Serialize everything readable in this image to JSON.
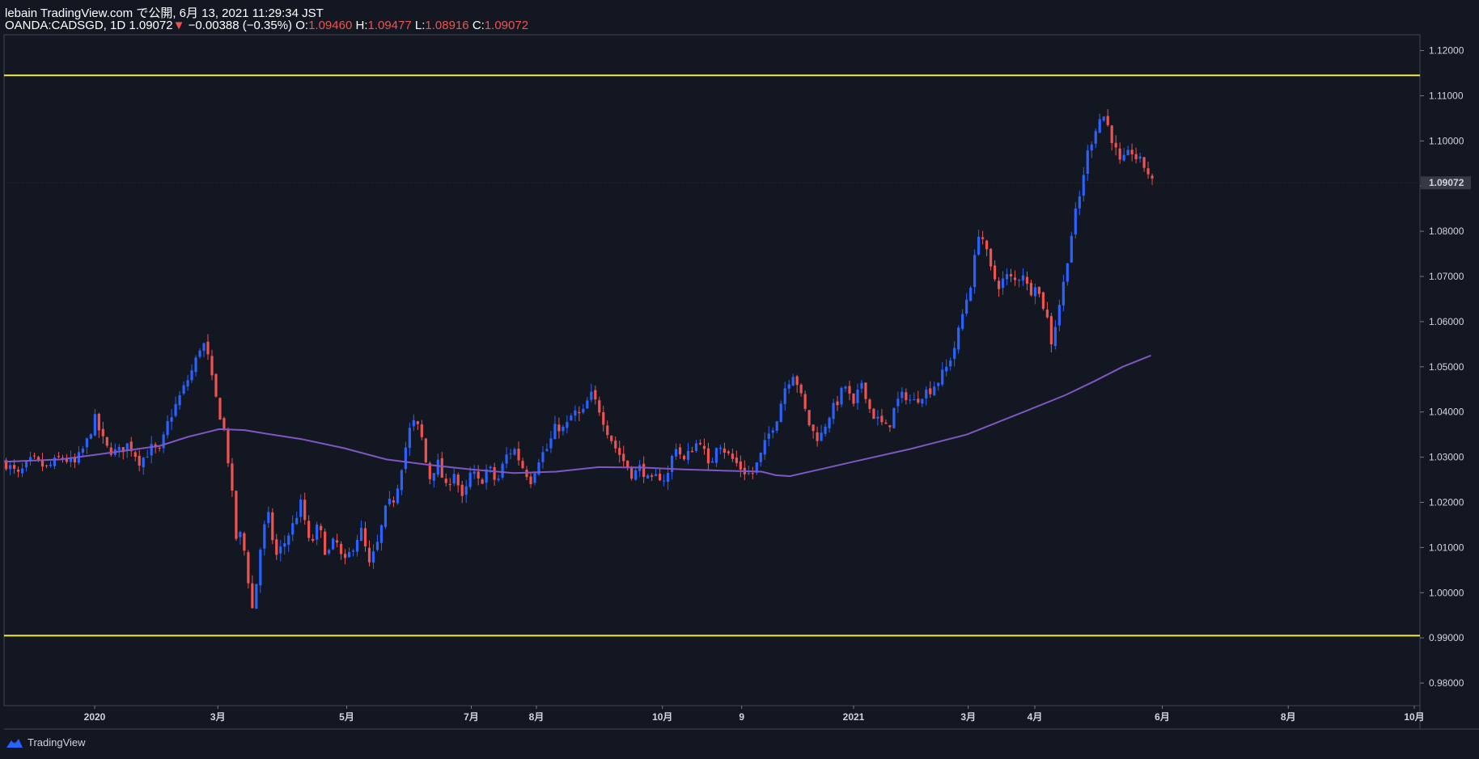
{
  "header": {
    "line1": "lebain TradingView.com で公開, 6月 13, 2021 11:29:34 JST",
    "symbol_label": "OANDA:CADSGD, 1D 1.09072",
    "down_arrow": "▼",
    "change": "−0.00388 (−0.35%)",
    "o_label": "O:",
    "o_value": "1.09460",
    "h_label": "H:",
    "h_value": "1.09477",
    "l_label": "L:",
    "l_value": "1.08916",
    "c_label": "C:",
    "c_value": "1.09072"
  },
  "footer": {
    "brand": "TradingView"
  },
  "colors": {
    "background": "#131722",
    "up": "#2962ff",
    "down": "#ef5350",
    "ma": "#7e57c2",
    "level": "#f5e94a"
  },
  "chart_data": {
    "type": "candlestick",
    "symbol": "OANDA:CADSGD",
    "interval": "1D",
    "ylim": [
      0.975,
      1.1235
    ],
    "y_ticks": [
      "1.12000",
      "1.11000",
      "1.10000",
      "1.09000",
      "1.08000",
      "1.07000",
      "1.06000",
      "1.05000",
      "1.04000",
      "1.03000",
      "1.02000",
      "1.01000",
      "1.00000",
      "0.99000",
      "0.98000"
    ],
    "last_price_label": "1.09072",
    "last_price": 1.09072,
    "x_ticks": [
      {
        "label": "2020",
        "t": 0.064
      },
      {
        "label": "3月",
        "t": 0.151
      },
      {
        "label": "5月",
        "t": 0.242
      },
      {
        "label": "7月",
        "t": 0.33
      },
      {
        "label": "8月",
        "t": 0.376
      },
      {
        "label": "10月",
        "t": 0.465
      },
      {
        "label": "9",
        "t": 0.521
      },
      {
        "label": "2021",
        "t": 0.6
      },
      {
        "label": "3月",
        "t": 0.681
      },
      {
        "label": "4月",
        "t": 0.728
      },
      {
        "label": "6月",
        "t": 0.818
      },
      {
        "label": "8月",
        "t": 0.907
      },
      {
        "label": "10月",
        "t": 0.996
      }
    ],
    "horizontal_levels": [
      1.1145,
      0.9905
    ],
    "close_path": [
      [
        0.0,
        1.029
      ],
      [
        0.01,
        1.026
      ],
      [
        0.02,
        1.0295
      ],
      [
        0.03,
        1.0275
      ],
      [
        0.04,
        1.03
      ],
      [
        0.05,
        1.0285
      ],
      [
        0.058,
        1.033
      ],
      [
        0.064,
        1.0385
      ],
      [
        0.072,
        1.032
      ],
      [
        0.08,
        1.031
      ],
      [
        0.088,
        1.033
      ],
      [
        0.096,
        1.029
      ],
      [
        0.104,
        1.032
      ],
      [
        0.11,
        1.031
      ],
      [
        0.116,
        1.038
      ],
      [
        0.122,
        1.042
      ],
      [
        0.128,
        1.046
      ],
      [
        0.134,
        1.05
      ],
      [
        0.14,
        1.056
      ],
      [
        0.144,
        1.052
      ],
      [
        0.148,
        1.045
      ],
      [
        0.152,
        1.04
      ],
      [
        0.156,
        1.035
      ],
      [
        0.16,
        1.025
      ],
      [
        0.164,
        1.012
      ],
      [
        0.168,
        1.013
      ],
      [
        0.172,
        1.004
      ],
      [
        0.176,
        0.995
      ],
      [
        0.18,
        1.008
      ],
      [
        0.186,
        1.018
      ],
      [
        0.192,
        1.008
      ],
      [
        0.198,
        1.011
      ],
      [
        0.204,
        1.015
      ],
      [
        0.21,
        1.02
      ],
      [
        0.216,
        1.01
      ],
      [
        0.222,
        1.015
      ],
      [
        0.228,
        1.008
      ],
      [
        0.234,
        1.012
      ],
      [
        0.24,
        1.006
      ],
      [
        0.246,
        1.01
      ],
      [
        0.252,
        1.014
      ],
      [
        0.258,
        1.006
      ],
      [
        0.264,
        1.011
      ],
      [
        0.27,
        1.019
      ],
      [
        0.276,
        1.021
      ],
      [
        0.282,
        1.03
      ],
      [
        0.288,
        1.038
      ],
      [
        0.294,
        1.036
      ],
      [
        0.3,
        1.025
      ],
      [
        0.306,
        1.029
      ],
      [
        0.312,
        1.023
      ],
      [
        0.318,
        1.027
      ],
      [
        0.324,
        1.02
      ],
      [
        0.33,
        1.027
      ],
      [
        0.336,
        1.024
      ],
      [
        0.342,
        1.028
      ],
      [
        0.348,
        1.024
      ],
      [
        0.354,
        1.03
      ],
      [
        0.36,
        1.032
      ],
      [
        0.366,
        1.028
      ],
      [
        0.372,
        1.025
      ],
      [
        0.378,
        1.03
      ],
      [
        0.384,
        1.032
      ],
      [
        0.39,
        1.037
      ],
      [
        0.396,
        1.036
      ],
      [
        0.402,
        1.04
      ],
      [
        0.408,
        1.039
      ],
      [
        0.414,
        1.044
      ],
      [
        0.42,
        1.041
      ],
      [
        0.426,
        1.036
      ],
      [
        0.432,
        1.032
      ],
      [
        0.438,
        1.029
      ],
      [
        0.444,
        1.026
      ],
      [
        0.45,
        1.028
      ],
      [
        0.456,
        1.024
      ],
      [
        0.462,
        1.026
      ],
      [
        0.468,
        1.025
      ],
      [
        0.474,
        1.033
      ],
      [
        0.48,
        1.029
      ],
      [
        0.486,
        1.032
      ],
      [
        0.492,
        1.034
      ],
      [
        0.498,
        1.027
      ],
      [
        0.504,
        1.034
      ],
      [
        0.51,
        1.031
      ],
      [
        0.516,
        1.029
      ],
      [
        0.522,
        1.027
      ],
      [
        0.528,
        1.026
      ],
      [
        0.534,
        1.03
      ],
      [
        0.54,
        1.035
      ],
      [
        0.546,
        1.039
      ],
      [
        0.552,
        1.046
      ],
      [
        0.558,
        1.049
      ],
      [
        0.564,
        1.042
      ],
      [
        0.57,
        1.036
      ],
      [
        0.576,
        1.034
      ],
      [
        0.582,
        1.039
      ],
      [
        0.588,
        1.042
      ],
      [
        0.594,
        1.046
      ],
      [
        0.6,
        1.041
      ],
      [
        0.606,
        1.047
      ],
      [
        0.612,
        1.04
      ],
      [
        0.618,
        1.038
      ],
      [
        0.624,
        1.036
      ],
      [
        0.63,
        1.042
      ],
      [
        0.636,
        1.044
      ],
      [
        0.642,
        1.042
      ],
      [
        0.648,
        1.044
      ],
      [
        0.654,
        1.045
      ],
      [
        0.66,
        1.047
      ],
      [
        0.666,
        1.05
      ],
      [
        0.672,
        1.055
      ],
      [
        0.678,
        1.063
      ],
      [
        0.684,
        1.07
      ],
      [
        0.688,
        1.08
      ],
      [
        0.692,
        1.078
      ],
      [
        0.696,
        1.072
      ],
      [
        0.702,
        1.068
      ],
      [
        0.708,
        1.07
      ],
      [
        0.714,
        1.069
      ],
      [
        0.72,
        1.071
      ],
      [
        0.724,
        1.066
      ],
      [
        0.728,
        1.069
      ],
      [
        0.732,
        1.065
      ],
      [
        0.736,
        1.062
      ],
      [
        0.74,
        1.055
      ],
      [
        0.744,
        1.062
      ],
      [
        0.748,
        1.068
      ],
      [
        0.752,
        1.076
      ],
      [
        0.756,
        1.083
      ],
      [
        0.76,
        1.088
      ],
      [
        0.764,
        1.096
      ],
      [
        0.768,
        1.1
      ],
      [
        0.772,
        1.104
      ],
      [
        0.776,
        1.106
      ],
      [
        0.78,
        1.103
      ],
      [
        0.784,
        1.099
      ],
      [
        0.788,
        1.095
      ],
      [
        0.792,
        1.096
      ],
      [
        0.796,
        1.098
      ],
      [
        0.8,
        1.096
      ],
      [
        0.804,
        1.095
      ],
      [
        0.808,
        1.093
      ],
      [
        0.811,
        1.0907
      ]
    ],
    "ma_path": [
      [
        0.0,
        1.029
      ],
      [
        0.04,
        1.0295
      ],
      [
        0.08,
        1.0312
      ],
      [
        0.11,
        1.0325
      ],
      [
        0.13,
        1.0345
      ],
      [
        0.152,
        1.0362
      ],
      [
        0.17,
        1.036
      ],
      [
        0.185,
        1.0352
      ],
      [
        0.21,
        1.034
      ],
      [
        0.24,
        1.032
      ],
      [
        0.27,
        1.0295
      ],
      [
        0.3,
        1.0283
      ],
      [
        0.33,
        1.0273
      ],
      [
        0.36,
        1.0265
      ],
      [
        0.39,
        1.0268
      ],
      [
        0.42,
        1.0278
      ],
      [
        0.45,
        1.0277
      ],
      [
        0.48,
        1.0273
      ],
      [
        0.51,
        1.027
      ],
      [
        0.535,
        1.0268
      ],
      [
        0.545,
        1.026
      ],
      [
        0.555,
        1.0258
      ],
      [
        0.575,
        1.0272
      ],
      [
        0.6,
        1.029
      ],
      [
        0.64,
        1.0318
      ],
      [
        0.68,
        1.035
      ],
      [
        0.72,
        1.04
      ],
      [
        0.75,
        1.0438
      ],
      [
        0.77,
        1.0468
      ],
      [
        0.79,
        1.05
      ],
      [
        0.81,
        1.0525
      ]
    ]
  }
}
